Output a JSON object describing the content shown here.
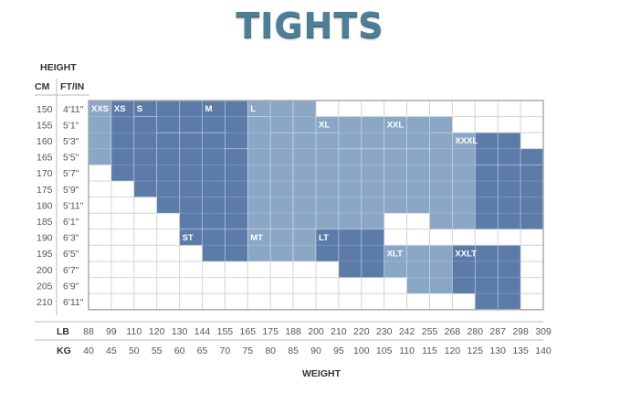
{
  "title": "TIGHTS",
  "axes": {
    "height_label": "HEIGHT",
    "cm_label": "CM",
    "ftin_label": "FT/IN",
    "lb_label": "LB",
    "kg_label": "KG",
    "weight_label": "WEIGHT"
  },
  "chart_data": {
    "type": "heatmap",
    "title": "TIGHTS",
    "xlabel": "WEIGHT",
    "ylabel": "HEIGHT",
    "kg_ticks": [
      40,
      45,
      50,
      55,
      60,
      65,
      70,
      75,
      80,
      85,
      90,
      95,
      100,
      105,
      110,
      115,
      120,
      125,
      130,
      135,
      140
    ],
    "lb_ticks": [
      88,
      99,
      110,
      120,
      130,
      144,
      155,
      165,
      175,
      188,
      200,
      210,
      220,
      230,
      242,
      255,
      268,
      280,
      287,
      298,
      309
    ],
    "cm_ticks": [
      150,
      155,
      160,
      165,
      170,
      175,
      180,
      185,
      190,
      195,
      200,
      205,
      210
    ],
    "ftin_ticks": [
      "4'11\"",
      "5'1\"",
      "5'3\"",
      "5'5\"",
      "5'7\"",
      "5'9\"",
      "5'11\"",
      "6'1\"",
      "6'3\"",
      "6'5\"",
      "6'7\"",
      "6'9\"",
      "6'11\""
    ],
    "regions": [
      {
        "label": "XXS",
        "kg": [
          40,
          45
        ],
        "cm": [
          [
            150,
            170
          ]
        ]
      },
      {
        "label": "XS",
        "kg": [
          45,
          50
        ],
        "cm": [
          [
            150,
            175
          ]
        ]
      },
      {
        "label": "S",
        "kg": [
          50,
          55
        ],
        "cm": [
          [
            150,
            155
          ]
        ]
      },
      {
        "label": "S",
        "kg": [
          55,
          60
        ],
        "cm": [
          [
            150,
            160
          ]
        ]
      },
      {
        "label": "S",
        "kg": [
          60,
          65
        ],
        "cm": [
          [
            150,
            160
          ]
        ]
      },
      {
        "label": "M",
        "kg": [
          65,
          70
        ],
        "cm": [
          [
            150,
            160
          ]
        ]
      },
      {
        "label": "M",
        "kg": [
          70,
          75
        ],
        "cm": [
          [
            150,
            165
          ]
        ]
      },
      {
        "label": "L",
        "kg": [
          75,
          80
        ],
        "cm": [
          [
            150,
            155
          ]
        ]
      },
      {
        "label": "L",
        "kg": [
          80,
          85
        ],
        "cm": [
          [
            150,
            160
          ]
        ]
      },
      {
        "label": "L",
        "kg": [
          85,
          90
        ],
        "cm": [
          [
            150,
            160
          ]
        ]
      },
      {
        "label": "XL",
        "kg": [
          90,
          95
        ],
        "cm": [
          [
            155,
            160
          ]
        ]
      },
      {
        "label": "XL",
        "kg": [
          95,
          100
        ],
        "cm": [
          [
            155,
            165
          ]
        ]
      },
      {
        "label": "XL",
        "kg": [
          100,
          105
        ],
        "cm": [
          [
            155,
            165
          ]
        ]
      },
      {
        "label": "XXL",
        "kg": [
          105,
          110
        ],
        "cm": [
          [
            155,
            165
          ]
        ]
      },
      {
        "label": "XXL",
        "kg": [
          110,
          115
        ],
        "cm": [
          [
            155,
            165
          ]
        ]
      },
      {
        "label": "XXL",
        "kg": [
          115,
          120
        ],
        "cm": [
          [
            155,
            160
          ]
        ]
      },
      {
        "label": "XXXL",
        "kg": [
          120,
          125
        ],
        "cm": [
          [
            160,
            165
          ]
        ]
      },
      {
        "label": "XXXL",
        "kg": [
          125,
          130
        ],
        "cm": [
          [
            160,
            170
          ]
        ]
      },
      {
        "label": "XXXL",
        "kg": [
          130,
          135
        ],
        "cm": [
          [
            160,
            170
          ]
        ]
      },
      {
        "label": "XXXL",
        "kg": [
          135,
          140
        ],
        "cm": [
          [
            165,
            170
          ]
        ]
      },
      {
        "label": "XXS",
        "kg": [
          40,
          45
        ],
        "cm": []
      },
      {
        "label": "S",
        "kg": [
          50,
          55
        ],
        "cm": [
          [
            155,
            180
          ]
        ]
      },
      {
        "label": "S",
        "kg": [
          55,
          60
        ],
        "cm": [
          [
            160,
            185
          ]
        ]
      },
      {
        "label": "M",
        "kg": [
          60,
          65
        ],
        "cm": [
          [
            160,
            190
          ]
        ]
      },
      {
        "label": "M",
        "kg": [
          65,
          70
        ],
        "cm": [
          [
            160,
            190
          ]
        ]
      },
      {
        "label": "M",
        "kg": [
          70,
          75
        ],
        "cm": [
          [
            165,
            190
          ]
        ]
      },
      {
        "label": "L",
        "kg": [
          75,
          80
        ],
        "cm": [
          [
            155,
            190
          ]
        ]
      },
      {
        "label": "L",
        "kg": [
          80,
          85
        ],
        "cm": [
          [
            160,
            190
          ]
        ]
      },
      {
        "label": "L",
        "kg": [
          85,
          90
        ],
        "cm": [
          [
            160,
            190
          ]
        ]
      },
      {
        "label": "XL",
        "kg": [
          90,
          95
        ],
        "cm": [
          [
            160,
            190
          ]
        ]
      },
      {
        "label": "XL",
        "kg": [
          95,
          100
        ],
        "cm": [
          [
            165,
            190
          ]
        ]
      },
      {
        "label": "XL",
        "kg": [
          100,
          105
        ],
        "cm": [
          [
            165,
            190
          ]
        ]
      },
      {
        "label": "XXL",
        "kg": [
          105,
          110
        ],
        "cm": [
          [
            165,
            185
          ]
        ]
      },
      {
        "label": "XXL",
        "kg": [
          110,
          115
        ],
        "cm": [
          [
            165,
            185
          ]
        ]
      },
      {
        "label": "XXL",
        "kg": [
          115,
          120
        ],
        "cm": [
          [
            160,
            190
          ]
        ]
      },
      {
        "label": "XXL",
        "kg": [
          120,
          125
        ],
        "cm": [
          [
            160,
            190
          ]
        ]
      },
      {
        "label": "XXXL",
        "kg": [
          125,
          130
        ],
        "cm": [
          [
            170,
            190
          ]
        ]
      },
      {
        "label": "XXXL",
        "kg": [
          130,
          135
        ],
        "cm": [
          [
            170,
            190
          ]
        ]
      },
      {
        "label": "XXXL",
        "kg": [
          135,
          140
        ],
        "cm": [
          [
            170,
            190
          ]
        ]
      },
      {
        "label": "ST",
        "kg": [
          60,
          65
        ],
        "cm": [
          [
            190,
            195
          ]
        ]
      },
      {
        "label": "ST",
        "kg": [
          65,
          70
        ],
        "cm": [
          [
            190,
            200
          ]
        ]
      },
      {
        "label": "ST",
        "kg": [
          70,
          75
        ],
        "cm": [
          [
            190,
            200
          ]
        ]
      },
      {
        "label": "MT",
        "kg": [
          75,
          80
        ],
        "cm": [
          [
            190,
            200
          ]
        ]
      },
      {
        "label": "MT",
        "kg": [
          80,
          85
        ],
        "cm": [
          [
            190,
            200
          ]
        ]
      },
      {
        "label": "MT",
        "kg": [
          85,
          90
        ],
        "cm": [
          [
            190,
            200
          ]
        ]
      },
      {
        "label": "LT",
        "kg": [
          90,
          95
        ],
        "cm": [
          [
            190,
            200
          ]
        ]
      },
      {
        "label": "LT",
        "kg": [
          95,
          100
        ],
        "cm": [
          [
            190,
            205
          ]
        ]
      },
      {
        "label": "LT",
        "kg": [
          100,
          105
        ],
        "cm": [
          [
            190,
            205
          ]
        ]
      },
      {
        "label": "XLT",
        "kg": [
          105,
          110
        ],
        "cm": [
          [
            195,
            205
          ]
        ]
      },
      {
        "label": "XLT",
        "kg": [
          110,
          115
        ],
        "cm": [
          [
            195,
            210
          ]
        ]
      },
      {
        "label": "XLT",
        "kg": [
          115,
          120
        ],
        "cm": [
          [
            195,
            210
          ]
        ]
      },
      {
        "label": "XXLT",
        "kg": [
          120,
          125
        ],
        "cm": [
          [
            195,
            210
          ]
        ]
      },
      {
        "label": "XXLT",
        "kg": [
          125,
          130
        ],
        "cm": [
          [
            195,
            215
          ]
        ]
      },
      {
        "label": "XXLT",
        "kg": [
          130,
          135
        ],
        "cm": [
          [
            195,
            215
          ]
        ]
      }
    ],
    "region_labels": [
      "XXS",
      "XS",
      "S",
      "M",
      "L",
      "XL",
      "XXL",
      "XXXL",
      "ST",
      "MT",
      "LT",
      "XLT",
      "XXLT"
    ],
    "colors": {
      "light": "#8aa7c6",
      "dark": "#5c7ba9",
      "grid": "#cccccc",
      "border": "#aaaaaa"
    }
  }
}
